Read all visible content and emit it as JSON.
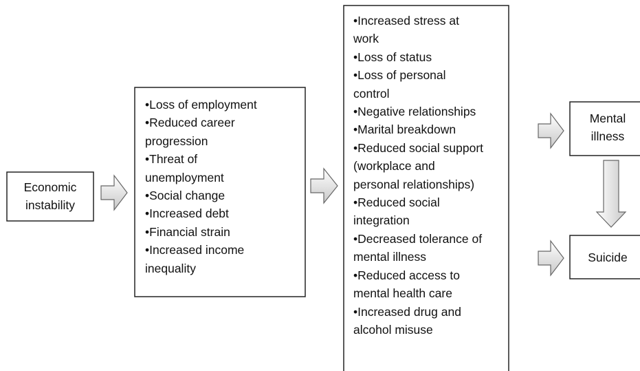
{
  "nodes": [
    {
      "label": [
        "Economic",
        "instability"
      ]
    },
    {
      "lines": [
        "•Loss of employment",
        "•Reduced career",
        "progression",
        "•Threat of",
        "unemployment",
        "•Social change",
        "•Increased debt",
        "•Financial strain",
        "•Increased income",
        "inequality"
      ]
    },
    {
      "lines": [
        "•Increased stress at",
        "work",
        "•Loss of status",
        "•Loss of personal",
        "control",
        "•Negative relationships",
        "•Marital breakdown",
        "•Reduced social support",
        "(workplace and",
        "personal relationships)",
        "•Reduced social",
        "integration",
        "•Decreased tolerance of",
        "mental illness",
        "•Reduced access to",
        "mental health care",
        "•Increased drug and",
        "alcohol misuse"
      ]
    },
    {
      "label": [
        "Mental",
        "illness"
      ]
    },
    {
      "label": [
        "Suicide"
      ]
    }
  ]
}
